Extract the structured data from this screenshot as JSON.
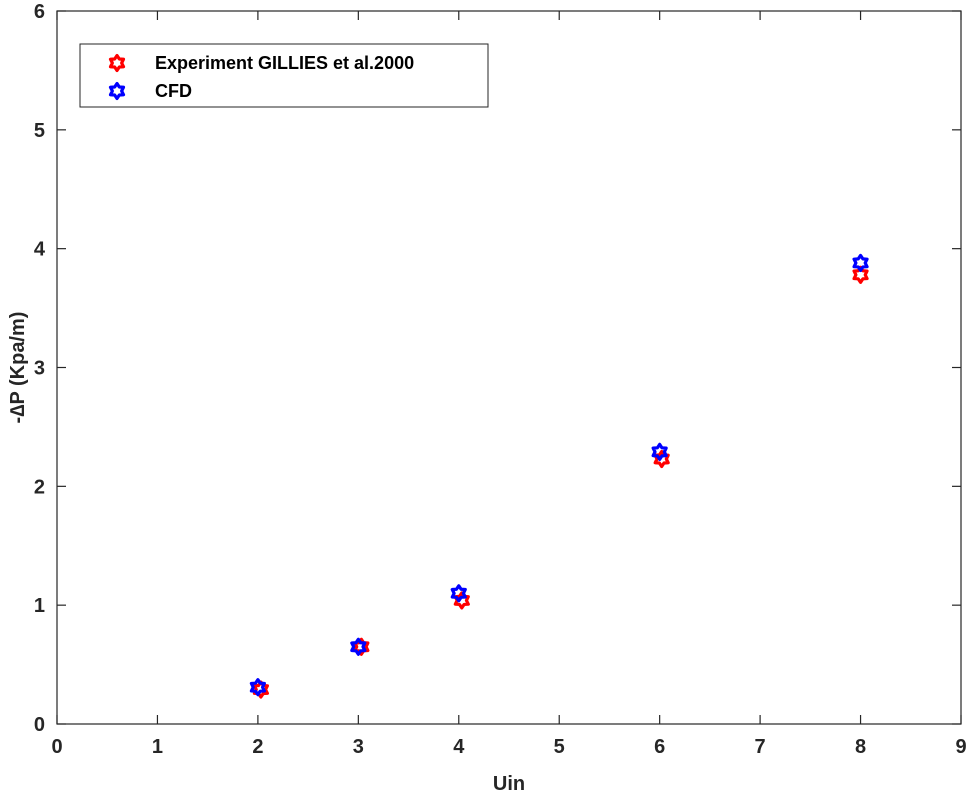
{
  "chart_data": {
    "type": "scatter",
    "title": "",
    "xlabel": "Uin",
    "ylabel": "-∆P (Kpa/m)",
    "xlim": [
      0,
      9
    ],
    "ylim": [
      0,
      6
    ],
    "xticks": [
      0,
      1,
      2,
      3,
      4,
      5,
      6,
      7,
      8,
      9
    ],
    "yticks": [
      0,
      1,
      2,
      3,
      4,
      5,
      6
    ],
    "grid": false,
    "legend_position": "top-left",
    "marker": "hexagram",
    "series": [
      {
        "name": "Experiment GILLIES et al.2000",
        "color": "#ff0000",
        "x": [
          2.03,
          3.03,
          4.03,
          6.02,
          8.0
        ],
        "y": [
          0.29,
          0.65,
          1.04,
          2.23,
          3.78
        ]
      },
      {
        "name": "CFD",
        "color": "#0000ff",
        "x": [
          2.0,
          3.0,
          4.0,
          6.0,
          8.0
        ],
        "y": [
          0.31,
          0.65,
          1.1,
          2.29,
          3.88
        ]
      }
    ]
  }
}
